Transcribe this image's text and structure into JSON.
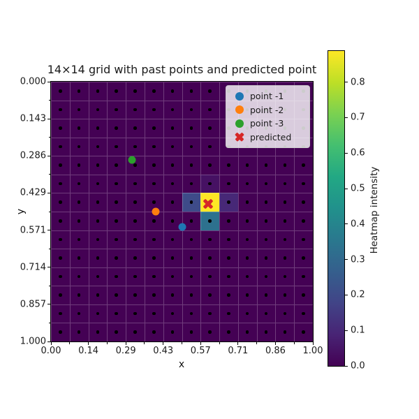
{
  "title": "14×14 grid with past points and predicted point",
  "axes": {
    "xlabel": "x",
    "ylabel": "y",
    "x_tick_labels": [
      "0.00",
      "0.14",
      "0.29",
      "0.43",
      "0.57",
      "0.71",
      "0.86",
      "1.00"
    ],
    "y_tick_labels": [
      "0.000",
      "0.143",
      "0.286",
      "0.429",
      "0.571",
      "0.714",
      "0.857",
      "1.000"
    ]
  },
  "legend": {
    "items": [
      {
        "label": "point -1",
        "marker": "circle",
        "color": "#1f77b4"
      },
      {
        "label": "point -2",
        "marker": "circle",
        "color": "#ff7f0e"
      },
      {
        "label": "point -3",
        "marker": "circle",
        "color": "#2ca02c"
      },
      {
        "label": "predicted",
        "marker": "X",
        "color": "#d62728"
      }
    ]
  },
  "colorbar": {
    "label": "Heatmap intensity",
    "tick_labels": [
      "0.0",
      "0.1",
      "0.2",
      "0.3",
      "0.4",
      "0.5",
      "0.6",
      "0.7",
      "0.8"
    ],
    "vmin": 0.0,
    "vmax": 0.888
  },
  "chart_data": {
    "type": "heatmap",
    "title": "14×14 grid with past points and predicted point",
    "xlabel": "x",
    "ylabel": "y",
    "grid_size": 14,
    "x_range": [
      0.0,
      1.0
    ],
    "y_range": [
      0.0,
      1.0
    ],
    "y_axis_inverted": true,
    "gridlines": true,
    "cell_center_dots": true,
    "colormap": "viridis",
    "vmin": 0.0,
    "vmax": 0.888,
    "major_tick_every_cells": 2,
    "minor_tick_every_cells": 1,
    "legend_position": "upper right",
    "heatmap_cells": {
      "default_value": 0.0,
      "nonzero": [
        {
          "row": 5,
          "col": 8,
          "value": 0.04
        },
        {
          "row": 6,
          "col": 7,
          "value": 0.2
        },
        {
          "row": 6,
          "col": 8,
          "value": 0.888
        },
        {
          "row": 6,
          "col": 9,
          "value": 0.1
        },
        {
          "row": 7,
          "col": 8,
          "value": 0.33
        }
      ]
    },
    "scatter_points": [
      {
        "label": "point -1",
        "x": 0.5,
        "y": 0.56,
        "marker": "circle",
        "color": "#1f77b4"
      },
      {
        "label": "point -2",
        "x": 0.4,
        "y": 0.5,
        "marker": "circle",
        "color": "#ff7f0e"
      },
      {
        "label": "point -3",
        "x": 0.31,
        "y": 0.3,
        "marker": "circle",
        "color": "#2ca02c"
      },
      {
        "label": "predicted",
        "x": 0.6,
        "y": 0.47,
        "marker": "X",
        "color": "#d62728"
      }
    ]
  }
}
